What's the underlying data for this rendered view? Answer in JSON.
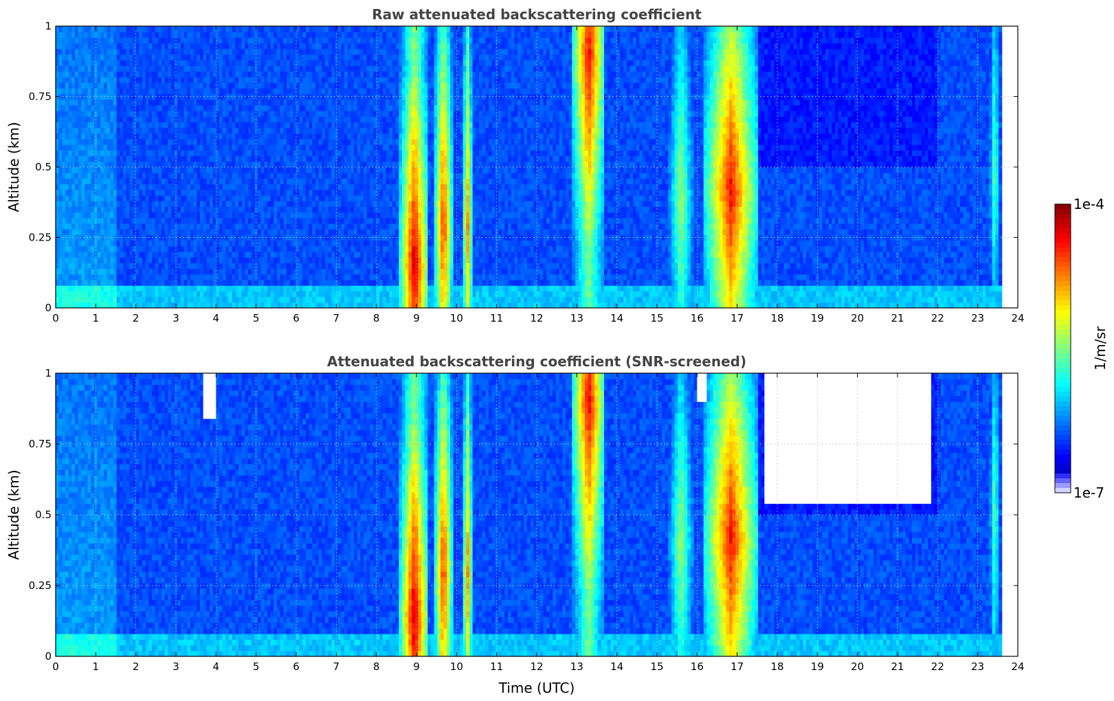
{
  "chart_data": [
    {
      "type": "heatmap",
      "title": "Raw attenuated backscattering coefficient",
      "xlabel": "",
      "ylabel": "Altitude (km)",
      "xlim": [
        0,
        24
      ],
      "ylim": [
        0,
        1
      ],
      "xticks": [
        "0",
        "1",
        "2",
        "3",
        "4",
        "5",
        "6",
        "7",
        "8",
        "9",
        "10",
        "11",
        "12",
        "13",
        "14",
        "15",
        "16",
        "17",
        "18",
        "19",
        "20",
        "21",
        "22",
        "23",
        "24"
      ],
      "yticks": [
        "0",
        "0.25",
        "0.5",
        "0.75",
        "1"
      ],
      "grid": true,
      "data_end_time": 23.6,
      "background_level": 0.2,
      "cloud_events": [
        {
          "t0": 8.6,
          "t1": 9.3,
          "peak": 0.95,
          "top": 1.0,
          "core_alt": 0.15
        },
        {
          "t0": 9.45,
          "t1": 9.9,
          "peak": 0.85,
          "top": 1.0,
          "core_alt": 0.3
        },
        {
          "t0": 10.15,
          "t1": 10.4,
          "peak": 0.75,
          "top": 1.0,
          "core_alt": 0.3
        },
        {
          "t0": 12.9,
          "t1": 13.7,
          "peak": 0.9,
          "top": 1.0,
          "core_alt": 0.9
        },
        {
          "t0": 15.3,
          "t1": 15.9,
          "peak": 0.55,
          "top": 1.0,
          "core_alt": 0.4
        },
        {
          "t0": 16.2,
          "t1": 17.5,
          "peak": 0.88,
          "top": 1.0,
          "core_alt": 0.42
        },
        {
          "t0": 23.3,
          "t1": 23.55,
          "peak": 0.5,
          "top": 1.0,
          "core_alt": 0.5
        }
      ]
    },
    {
      "type": "heatmap",
      "title": "Attenuated backscattering coefficient (SNR-screened)",
      "xlabel": "Time (UTC)",
      "ylabel": "Altitude (km)",
      "xlim": [
        0,
        24
      ],
      "ylim": [
        0,
        1
      ],
      "xticks": [
        "0",
        "1",
        "2",
        "3",
        "4",
        "5",
        "6",
        "7",
        "8",
        "9",
        "10",
        "11",
        "12",
        "13",
        "14",
        "15",
        "16",
        "17",
        "18",
        "19",
        "20",
        "21",
        "22",
        "23",
        "24"
      ],
      "yticks": [
        "0",
        "0.25",
        "0.5",
        "0.75",
        "1"
      ],
      "grid": true,
      "data_end_time": 23.6,
      "background_level": 0.2,
      "screened_regions": [
        {
          "t0": 17.7,
          "t1": 21.8,
          "bottom": 0.55
        },
        {
          "t0": 3.7,
          "t1": 4.0,
          "bottom": 0.85
        },
        {
          "t0": 16.0,
          "t1": 16.2,
          "bottom": 0.9
        }
      ]
    }
  ],
  "colorbar": {
    "label": "1/m/sr",
    "max_label": "1e-4",
    "min_label": "1e-7",
    "scale": "log",
    "range": [
      1e-07,
      0.0001
    ]
  }
}
